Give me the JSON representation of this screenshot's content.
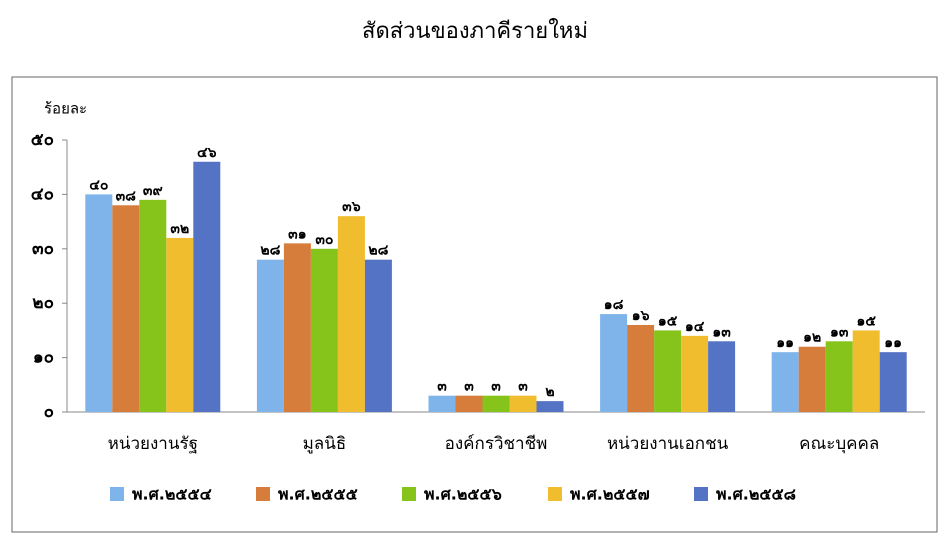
{
  "chart_data": {
    "type": "bar",
    "title": "สัดส่วนของภาคีรายใหม่",
    "y_label": "ร้อยละ",
    "categories": [
      "หน่วยงานรัฐ",
      "มูลนิธิ",
      "องค์กรวิชาชีพ",
      "หน่วยงานเอกชน",
      "คณะบุคคล"
    ],
    "series": [
      {
        "name": "พ.ศ.๒๕๕๔",
        "color": "#7eb4ea",
        "values": [
          40,
          28,
          3,
          18,
          11
        ],
        "value_labels": [
          "๔๐",
          "๒๘",
          "๓",
          "๑๘",
          "๑๑"
        ]
      },
      {
        "name": "พ.ศ.๒๕๕๕",
        "color": "#d67d3c",
        "values": [
          38,
          31,
          3,
          16,
          12
        ],
        "value_labels": [
          "๓๘",
          "๓๑",
          "๓",
          "๑๖",
          "๑๒"
        ]
      },
      {
        "name": "พ.ศ.๒๕๕๖",
        "color": "#86c31b",
        "values": [
          39,
          30,
          3,
          15,
          13
        ],
        "value_labels": [
          "๓๙",
          "๓๐",
          "๓",
          "๑๕",
          "๑๓"
        ]
      },
      {
        "name": "พ.ศ.๒๕๕๗",
        "color": "#f0bd2e",
        "values": [
          32,
          36,
          3,
          14,
          15
        ],
        "value_labels": [
          "๓๒",
          "๓๖",
          "๓",
          "๑๔",
          "๑๕"
        ]
      },
      {
        "name": "พ.ศ.๒๕๕๘",
        "color": "#5573c5",
        "values": [
          46,
          28,
          2,
          13,
          11
        ],
        "value_labels": [
          "๔๖",
          "๒๘",
          "๒",
          "๑๓",
          "๑๑"
        ]
      }
    ],
    "ylim": [
      0,
      50
    ],
    "yticks": [
      {
        "value": 0,
        "label": "๐"
      },
      {
        "value": 10,
        "label": "๑๐"
      },
      {
        "value": 20,
        "label": "๒๐"
      },
      {
        "value": 30,
        "label": "๓๐"
      },
      {
        "value": 40,
        "label": "๔๐"
      },
      {
        "value": 50,
        "label": "๕๐"
      }
    ],
    "legend": "bottom"
  }
}
